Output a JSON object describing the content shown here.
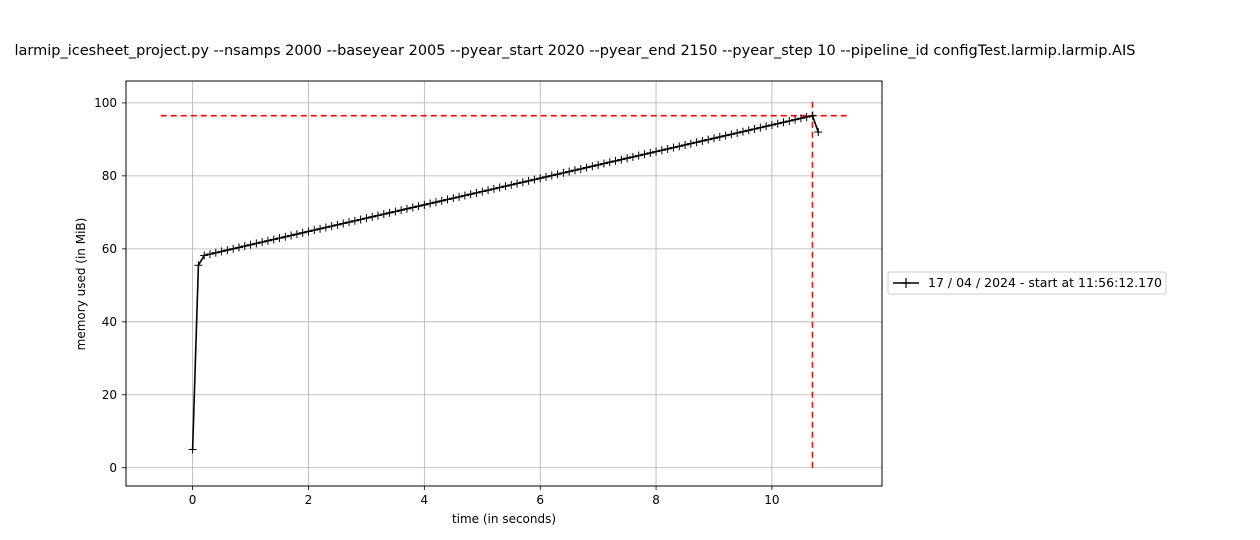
{
  "chart_data": {
    "type": "line",
    "title": "larmip_icesheet_project.py --nsamps 2000 --baseyear 2005 --pyear_start 2020 --pyear_end 2150 --pyear_step 10 --pipeline_id configTest.larmip.larmip.AIS",
    "xlabel": "time (in seconds)",
    "ylabel": "memory used (in MiB)",
    "xlim": [
      -1.15,
      11.9
    ],
    "ylim": [
      -5,
      106
    ],
    "xticks": [
      0,
      2,
      4,
      6,
      8,
      10
    ],
    "yticks": [
      0,
      20,
      40,
      60,
      80,
      100
    ],
    "grid": true,
    "legend_position": "outside-right",
    "series": [
      {
        "name": "17 / 04 / 2024 - start at 11:56:12.170",
        "color": "#000000",
        "marker": "+",
        "start": {
          "x": 0.0,
          "y": 5.0
        },
        "jump": {
          "x": 0.1,
          "y": 55.5
        },
        "ramp": {
          "x_start": 0.2,
          "x_end": 10.7,
          "step": 0.1,
          "y_start": 58.2,
          "y_end": 96.5
        },
        "end": {
          "x": 10.8,
          "y": 92.0
        }
      }
    ],
    "annotations": {
      "max_line_y": 96.5,
      "max_line_x": 10.7,
      "hline_xrange": [
        -0.55,
        11.3
      ],
      "vline_yrange": [
        0,
        101
      ],
      "color": "#ff0000"
    }
  }
}
